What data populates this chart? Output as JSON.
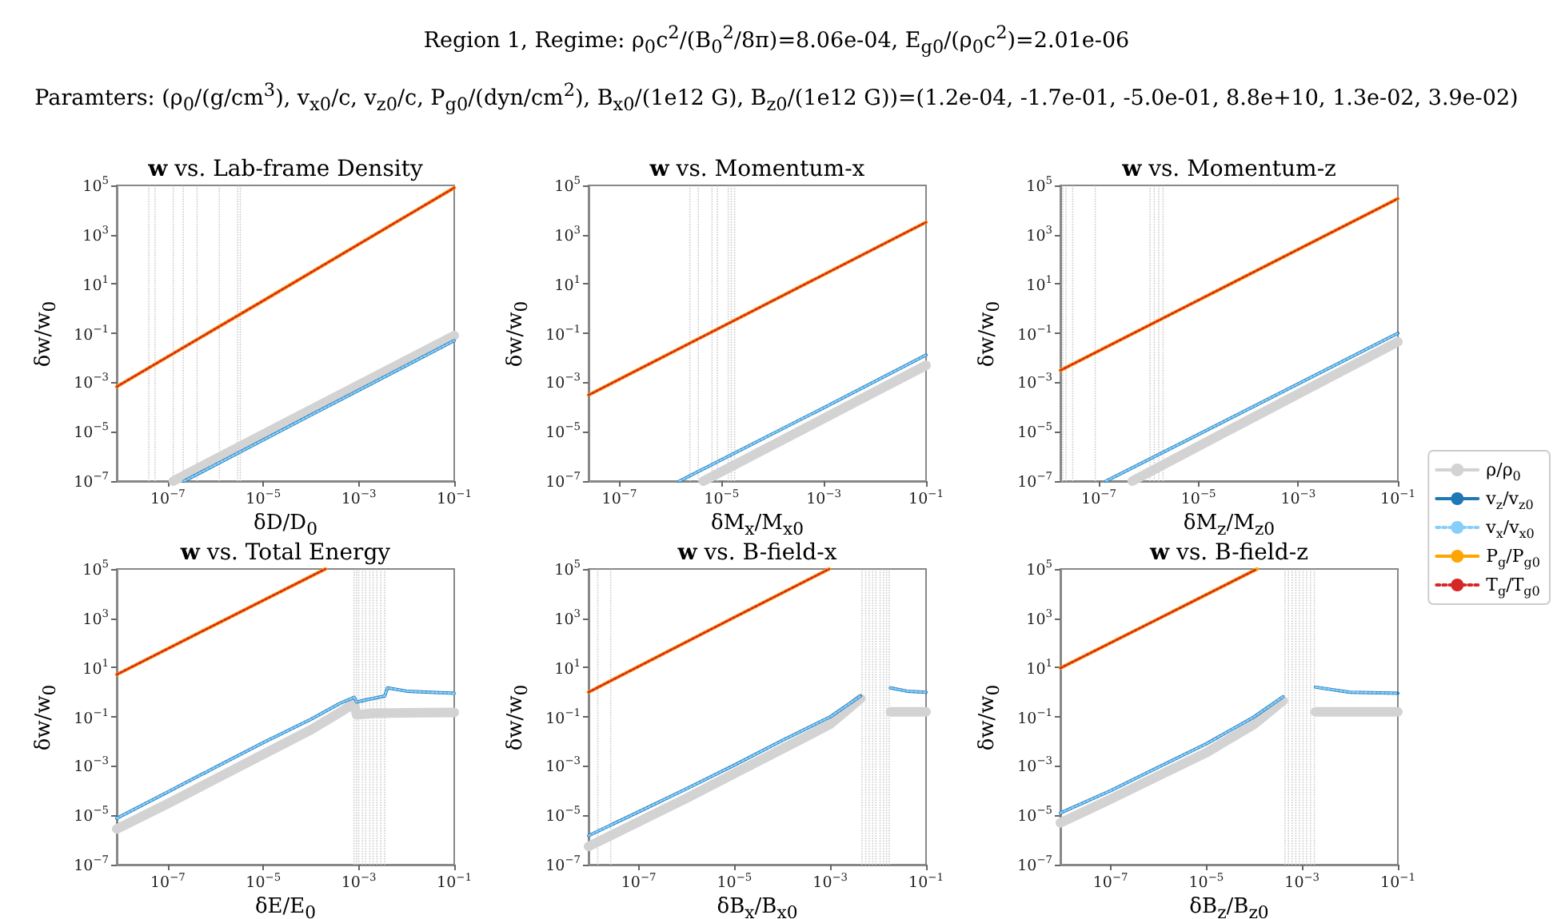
{
  "chart_data": [
    {
      "type": "line",
      "title": "w vs. Lab-frame Density",
      "xlabel": "δD/D$_{0}$",
      "ylabel": "δw/w$_{0}$",
      "log": "xy",
      "marker": "none",
      "annotations": [
        "Region 1, Regime: ρ$_{0}$c$^{2}$/(B$_{0}$$^{2}$/8π)=8.06e-04, E$_{g0}$/(ρ$_{0}$c$^{2}$)=2.01e-06",
        "Paramters: (ρ$_{0}$/(g/cm$^{3}$), v$_{x0}$/c, v$_{z0}$/c, P$_{g0}$/(dyn/cm$^{2}$), B$_{x0}$/(1e12 G), B$_{z0}$/(1e12 G))=(1.2e-04, -1.7e-01, -5.0e-01, 8.8e+10, 1.3e-02, 3.9e-02)"
      ],
      "xlim": [
        8.5e-09,
        0.1
      ],
      "ylim": [
        1e-07,
        100000.0
      ],
      "xticks": [
        {
          "value": 1e-07,
          "label": "10$^{−7}$"
        },
        {
          "value": 1e-05,
          "label": "10$^{−5}$"
        },
        {
          "value": 0.001,
          "label": "10$^{−3}$"
        },
        {
          "value": 0.1,
          "label": "10$^{−1}$"
        }
      ],
      "yticks": [
        {
          "value": 1e-07,
          "label": "10$^{−7}$"
        },
        {
          "value": 1e-05,
          "label": "10$^{−5}$"
        },
        {
          "value": 0.001,
          "label": "10$^{−3}$"
        },
        {
          "value": 0.1,
          "label": "10$^{−1}$"
        },
        {
          "value": 10,
          "label": "10$^{1}$"
        },
        {
          "value": 1000,
          "label": "10$^{3}$"
        },
        {
          "value": 100000,
          "label": "10$^{5}$"
        }
      ],
      "series": [
        {
          "color": "#d3d3d3",
          "line_style": "solid",
          "x": [
            1.3e-07,
            0.0001,
            0.1
          ],
          "values": [
            1e-07,
            8e-05,
            0.08
          ]
        },
        {
          "color": "#1f77b4",
          "line_style": "solid",
          "x": [
            2.2e-07,
            0.0001,
            0.1
          ],
          "values": [
            1e-07,
            4.8e-05,
            0.05
          ]
        },
        {
          "color": "#87cefa",
          "line_style": "dotted",
          "x": [
            2.2e-07,
            0.0001,
            0.1
          ],
          "values": [
            1e-07,
            4.8e-05,
            0.05
          ]
        },
        {
          "color": "#ffa500",
          "line_style": "solid",
          "x": [
            8.5e-09,
            1e-05,
            0.1
          ],
          "values": [
            0.00068,
            2.1,
            80000.0
          ]
        },
        {
          "color": "#d62728",
          "line_style": "dotted",
          "x": [
            8.5e-09,
            1e-05,
            0.1
          ],
          "values": [
            0.00068,
            2.1,
            80000.0
          ]
        }
      ],
      "ref_lines": [
        {
          "axis": "x",
          "value": 4e-08,
          "color": "#cccccc",
          "line_style": "dotted"
        },
        {
          "axis": "x",
          "value": 5.4e-08,
          "color": "#cccccc",
          "line_style": "dotted"
        },
        {
          "axis": "x",
          "value": 1.3e-07,
          "color": "#cccccc",
          "line_style": "dotted"
        },
        {
          "axis": "x",
          "value": 2.1e-07,
          "color": "#cccccc",
          "line_style": "dotted"
        },
        {
          "axis": "x",
          "value": 4.1e-07,
          "color": "#cccccc",
          "line_style": "dotted"
        },
        {
          "axis": "x",
          "value": 1.2e-06,
          "color": "#cccccc",
          "line_style": "dotted"
        },
        {
          "axis": "x",
          "value": 2.9e-06,
          "color": "#cccccc",
          "line_style": "dotted"
        },
        {
          "axis": "x",
          "value": 3.3e-06,
          "color": "#cccccc",
          "line_style": "dotted"
        }
      ]
    },
    {
      "type": "line",
      "title": "w vs. Momentum-x",
      "xlabel": "δM$_{x}$/M$_{x0}$",
      "ylabel": "δw/w$_{0}$",
      "log": "xy",
      "marker": "none",
      "xlim": [
        2.5e-08,
        0.1
      ],
      "ylim": [
        1e-07,
        100000.0
      ],
      "xticks": [
        {
          "value": 1e-07,
          "label": "10$^{−7}$"
        },
        {
          "value": 1e-05,
          "label": "10$^{−5}$"
        },
        {
          "value": 0.001,
          "label": "10$^{−3}$"
        },
        {
          "value": 0.1,
          "label": "10$^{−1}$"
        }
      ],
      "yticks": [
        {
          "value": 1e-07,
          "label": "10$^{−7}$"
        },
        {
          "value": 1e-05,
          "label": "10$^{−5}$"
        },
        {
          "value": 0.001,
          "label": "10$^{−3}$"
        },
        {
          "value": 0.1,
          "label": "10$^{−1}$"
        },
        {
          "value": 10,
          "label": "10$^{1}$"
        },
        {
          "value": 1000,
          "label": "10$^{3}$"
        },
        {
          "value": 100000,
          "label": "10$^{5}$"
        }
      ],
      "series": [
        {
          "color": "#d3d3d3",
          "line_style": "solid",
          "x": [
            4.4e-06,
            0.001,
            0.1
          ],
          "values": [
            1e-07,
            3.5e-05,
            0.005
          ]
        },
        {
          "color": "#1f77b4",
          "line_style": "solid",
          "x": [
            1.5e-06,
            0.001,
            0.1
          ],
          "values": [
            1e-07,
            9.5e-05,
            0.013
          ]
        },
        {
          "color": "#87cefa",
          "line_style": "dotted",
          "x": [
            1.5e-06,
            0.001,
            0.1
          ],
          "values": [
            1e-07,
            9.5e-05,
            0.013
          ]
        },
        {
          "color": "#ffa500",
          "line_style": "solid",
          "x": [
            2.5e-08,
            1e-05,
            0.1
          ],
          "values": [
            0.00031,
            0.18,
            3200.0
          ]
        },
        {
          "color": "#d62728",
          "line_style": "dotted",
          "x": [
            2.5e-08,
            1e-05,
            0.1
          ],
          "values": [
            0.00031,
            0.18,
            3200.0
          ]
        }
      ],
      "ref_lines": [
        {
          "axis": "x",
          "value": 2.4e-06,
          "color": "#cccccc",
          "line_style": "dotted"
        },
        {
          "axis": "x",
          "value": 3.5e-06,
          "color": "#cccccc",
          "line_style": "dotted"
        },
        {
          "axis": "x",
          "value": 6.5e-06,
          "color": "#cccccc",
          "line_style": "dotted"
        },
        {
          "axis": "x",
          "value": 8.3e-06,
          "color": "#cccccc",
          "line_style": "dotted"
        },
        {
          "axis": "x",
          "value": 1.35e-05,
          "color": "#cccccc",
          "line_style": "dotted"
        },
        {
          "axis": "x",
          "value": 1.55e-05,
          "color": "#cccccc",
          "line_style": "dotted"
        },
        {
          "axis": "x",
          "value": 1.8e-05,
          "color": "#cccccc",
          "line_style": "dotted"
        }
      ]
    },
    {
      "type": "line",
      "title": "w vs. Momentum-z",
      "xlabel": "δM$_{z}$/M$_{z0}$",
      "ylabel": "δw/w$_{0}$",
      "log": "xy",
      "marker": "none",
      "legend": "right",
      "xlim": [
        1.7e-08,
        0.1
      ],
      "ylim": [
        1e-07,
        100000.0
      ],
      "xticks": [
        {
          "value": 1e-07,
          "label": "10$^{−7}$"
        },
        {
          "value": 1e-05,
          "label": "10$^{−5}$"
        },
        {
          "value": 0.001,
          "label": "10$^{−3}$"
        },
        {
          "value": 0.1,
          "label": "10$^{−1}$"
        }
      ],
      "yticks": [
        {
          "value": 1e-07,
          "label": "10$^{−7}$"
        },
        {
          "value": 1e-05,
          "label": "10$^{−5}$"
        },
        {
          "value": 0.001,
          "label": "10$^{−3}$"
        },
        {
          "value": 0.1,
          "label": "10$^{−1}$"
        },
        {
          "value": 10,
          "label": "10$^{1}$"
        },
        {
          "value": 1000,
          "label": "10$^{3}$"
        },
        {
          "value": 100000,
          "label": "10$^{5}$"
        }
      ],
      "series": [
        {
          "name": "ρ/ρ$_{0}$",
          "color": "#d3d3d3",
          "line_style": "solid",
          "x": [
            4.7e-07,
            0.0001,
            0.1
          ],
          "values": [
            1e-07,
            3e-05,
            0.045
          ]
        },
        {
          "name": "v$_{z}$/v$_{z0}$",
          "color": "#1f77b4",
          "line_style": "solid",
          "x": [
            1.4e-07,
            0.0001,
            0.1
          ],
          "values": [
            1e-07,
            8.3e-05,
            0.1
          ]
        },
        {
          "name": "v$_{x}$/v$_{x0}$",
          "color": "#87cefa",
          "line_style": "dotted",
          "x": [
            1.4e-07,
            0.0001,
            0.1
          ],
          "values": [
            1e-07,
            8.3e-05,
            0.1
          ]
        },
        {
          "name": "P$_{g}$/P$_{g0}$",
          "color": "#ffa500",
          "line_style": "solid",
          "x": [
            1.7e-08,
            1e-05,
            0.1
          ],
          "values": [
            0.0031,
            2.2,
            29000.0
          ]
        },
        {
          "name": "T$_{g}$/T$_{g0}$",
          "color": "#d62728",
          "line_style": "dotted",
          "x": [
            1.7e-08,
            1e-05,
            0.1
          ],
          "values": [
            0.0031,
            2.2,
            29000.0
          ]
        }
      ],
      "ref_lines": [
        {
          "axis": "x",
          "value": 1.9e-08,
          "color": "#cccccc",
          "line_style": "dotted"
        },
        {
          "axis": "x",
          "value": 2.2e-08,
          "color": "#cccccc",
          "line_style": "dotted"
        },
        {
          "axis": "x",
          "value": 3e-08,
          "color": "#cccccc",
          "line_style": "dotted"
        },
        {
          "axis": "x",
          "value": 8.5e-08,
          "color": "#cccccc",
          "line_style": "dotted"
        },
        {
          "axis": "x",
          "value": 1.07e-06,
          "color": "#cccccc",
          "line_style": "dotted"
        },
        {
          "axis": "x",
          "value": 1.3e-06,
          "color": "#cccccc",
          "line_style": "dotted"
        },
        {
          "axis": "x",
          "value": 1.6e-06,
          "color": "#cccccc",
          "line_style": "dotted"
        },
        {
          "axis": "x",
          "value": 1.95e-06,
          "color": "#cccccc",
          "line_style": "dotted"
        }
      ]
    },
    {
      "type": "line",
      "title": "w vs. Total Energy",
      "xlabel": "δE/E$_{0}$",
      "ylabel": "δw/w$_{0}$",
      "log": "xy",
      "marker": "none",
      "xlim": [
        8.5e-09,
        0.1
      ],
      "ylim": [
        1e-07,
        100000.0
      ],
      "xticks": [
        {
          "value": 1e-07,
          "label": "10$^{−7}$"
        },
        {
          "value": 1e-05,
          "label": "10$^{−5}$"
        },
        {
          "value": 0.001,
          "label": "10$^{−3}$"
        },
        {
          "value": 0.1,
          "label": "10$^{−1}$"
        }
      ],
      "yticks": [
        {
          "value": 1e-07,
          "label": "10$^{−7}$"
        },
        {
          "value": 1e-05,
          "label": "10$^{−5}$"
        },
        {
          "value": 0.001,
          "label": "10$^{−3}$"
        },
        {
          "value": 0.1,
          "label": "10$^{−1}$"
        },
        {
          "value": 10,
          "label": "10$^{1}$"
        },
        {
          "value": 1000,
          "label": "10$^{3}$"
        },
        {
          "value": 100000,
          "label": "10$^{5}$"
        }
      ],
      "series": [
        {
          "color": "#d3d3d3",
          "line_style": "solid",
          "x": [
            8.5e-09,
            1e-07,
            1e-06,
            1e-05,
            0.0001,
            0.0004,
            0.0008,
            0.0009,
            0.002,
            0.1
          ],
          "values": [
            2.8e-06,
            3e-05,
            0.0003,
            0.003,
            0.03,
            0.15,
            0.35,
            0.12,
            0.14,
            0.15
          ]
        },
        {
          "color": "#1f77b4",
          "line_style": "solid",
          "x": [
            8.5e-09,
            1e-07,
            1e-06,
            1e-05,
            0.0001,
            0.0004,
            0.0008,
            0.0009,
            0.0015,
            0.0035,
            0.004,
            0.01,
            0.1
          ],
          "values": [
            7.6e-06,
            9e-05,
            0.0009,
            0.009,
            0.08,
            0.35,
            0.62,
            0.4,
            0.5,
            0.7,
            1.5,
            1.1,
            0.9
          ]
        },
        {
          "color": "#87cefa",
          "line_style": "dotted",
          "x": [
            8.5e-09,
            1e-07,
            1e-06,
            1e-05,
            0.0001,
            0.0004,
            0.0008,
            0.0009,
            0.0015,
            0.0035,
            0.004,
            0.01,
            0.1
          ],
          "values": [
            7.6e-06,
            9e-05,
            0.0009,
            0.009,
            0.08,
            0.35,
            0.62,
            0.4,
            0.5,
            0.7,
            1.5,
            1.1,
            0.9
          ]
        },
        {
          "color": "#ffa500",
          "line_style": "solid",
          "x": [
            8.5e-09,
            1e-06,
            0.0002
          ],
          "values": [
            5.2,
            560,
            100000.0
          ]
        },
        {
          "color": "#d62728",
          "line_style": "dotted",
          "x": [
            8.5e-09,
            1e-06,
            0.0002
          ],
          "values": [
            5.2,
            560,
            100000.0
          ]
        }
      ],
      "ref_lines": [
        {
          "axis": "x",
          "value": 0.0008,
          "color": "#cccccc",
          "line_style": "dotted"
        },
        {
          "axis": "x",
          "value": 0.0009,
          "color": "#cccccc",
          "line_style": "dotted"
        },
        {
          "axis": "x",
          "value": 0.001,
          "color": "#cccccc",
          "line_style": "dotted"
        },
        {
          "axis": "x",
          "value": 0.0012,
          "color": "#cccccc",
          "line_style": "dotted"
        },
        {
          "axis": "x",
          "value": 0.0014,
          "color": "#cccccc",
          "line_style": "dotted"
        },
        {
          "axis": "x",
          "value": 0.0017,
          "color": "#cccccc",
          "line_style": "dotted"
        },
        {
          "axis": "x",
          "value": 0.002,
          "color": "#cccccc",
          "line_style": "dotted"
        },
        {
          "axis": "x",
          "value": 0.0024,
          "color": "#cccccc",
          "line_style": "dotted"
        },
        {
          "axis": "x",
          "value": 0.0029,
          "color": "#cccccc",
          "line_style": "dotted"
        },
        {
          "axis": "x",
          "value": 0.0035,
          "color": "#cccccc",
          "line_style": "dotted"
        }
      ]
    },
    {
      "type": "line",
      "title": "w vs. B-field-x",
      "xlabel": "δB$_{x}$/B$_{x0}$",
      "ylabel": "δw/w$_{0}$",
      "log": "xy",
      "marker": "none",
      "xlim": [
        9e-09,
        0.1
      ],
      "ylim": [
        1e-07,
        100000.0
      ],
      "xticks": [
        {
          "value": 1e-07,
          "label": "10$^{−7}$"
        },
        {
          "value": 1e-05,
          "label": "10$^{−5}$"
        },
        {
          "value": 0.001,
          "label": "10$^{−3}$"
        },
        {
          "value": 0.1,
          "label": "10$^{−1}$"
        }
      ],
      "yticks": [
        {
          "value": 1e-07,
          "label": "10$^{−7}$"
        },
        {
          "value": 1e-05,
          "label": "10$^{−5}$"
        },
        {
          "value": 0.001,
          "label": "10$^{−3}$"
        },
        {
          "value": 0.1,
          "label": "10$^{−1}$"
        },
        {
          "value": 10,
          "label": "10$^{1}$"
        },
        {
          "value": 1000,
          "label": "10$^{3}$"
        },
        {
          "value": 100000,
          "label": "10$^{5}$"
        }
      ],
      "series": [
        {
          "color": "#d3d3d3",
          "line_style": "solid",
          "x": [
            9e-09,
            1e-07,
            1e-06,
            1e-05,
            0.0001,
            0.001,
            0.0043,
            0.01,
            0.018,
            0.1
          ],
          "values": [
            5.5e-07,
            5.5e-06,
            5e-05,
            0.0005,
            0.005,
            0.05,
            0.55,
            null,
            0.16,
            0.16
          ]
        },
        {
          "color": "#1f77b4",
          "line_style": "solid",
          "x": [
            9e-09,
            1e-07,
            1e-06,
            1e-05,
            0.0001,
            0.001,
            0.0043,
            0.01,
            0.018,
            0.04,
            0.1
          ],
          "values": [
            1.5e-06,
            1.4e-05,
            0.00012,
            0.0011,
            0.011,
            0.1,
            0.7,
            null,
            1.5,
            1.1,
            1.0
          ]
        },
        {
          "color": "#87cefa",
          "line_style": "dotted",
          "x": [
            9e-09,
            1e-07,
            1e-06,
            1e-05,
            0.0001,
            0.001,
            0.0043,
            0.01,
            0.018,
            0.04,
            0.1
          ],
          "values": [
            1.5e-06,
            1.4e-05,
            0.00012,
            0.0011,
            0.011,
            0.1,
            0.7,
            null,
            1.5,
            1.1,
            1.0
          ]
        },
        {
          "color": "#ffa500",
          "line_style": "solid",
          "x": [
            9e-09,
            1e-05,
            0.00095
          ],
          "values": [
            1.0,
            1100.0,
            100000.0
          ]
        },
        {
          "color": "#d62728",
          "line_style": "dotted",
          "x": [
            9e-09,
            1e-05,
            0.00095
          ],
          "values": [
            1.0,
            1100.0,
            100000.0
          ]
        }
      ],
      "ref_lines": [
        {
          "axis": "x",
          "value": 1.4e-08,
          "color": "#cccccc",
          "line_style": "dotted"
        },
        {
          "axis": "x",
          "value": 2.6e-08,
          "color": "#cccccc",
          "line_style": "dotted"
        },
        {
          "axis": "x",
          "value": 0.0046,
          "color": "#cccccc",
          "line_style": "dotted"
        },
        {
          "axis": "x",
          "value": 0.0055,
          "color": "#cccccc",
          "line_style": "dotted"
        },
        {
          "axis": "x",
          "value": 0.0065,
          "color": "#cccccc",
          "line_style": "dotted"
        },
        {
          "axis": "x",
          "value": 0.0077,
          "color": "#cccccc",
          "line_style": "dotted"
        },
        {
          "axis": "x",
          "value": 0.009,
          "color": "#cccccc",
          "line_style": "dotted"
        },
        {
          "axis": "x",
          "value": 0.011,
          "color": "#cccccc",
          "line_style": "dotted"
        },
        {
          "axis": "x",
          "value": 0.013,
          "color": "#cccccc",
          "line_style": "dotted"
        },
        {
          "axis": "x",
          "value": 0.015,
          "color": "#cccccc",
          "line_style": "dotted"
        },
        {
          "axis": "x",
          "value": 0.017,
          "color": "#cccccc",
          "line_style": "dotted"
        }
      ]
    },
    {
      "type": "line",
      "title": "w vs. B-field-z",
      "xlabel": "δB$_{z}$/B$_{z0}$",
      "ylabel": "δw/w$_{0}$",
      "log": "xy",
      "marker": "none",
      "xlim": [
        9e-09,
        0.1
      ],
      "ylim": [
        1e-07,
        100000.0
      ],
      "xticks": [
        {
          "value": 1e-07,
          "label": "10$^{−7}$"
        },
        {
          "value": 1e-05,
          "label": "10$^{−5}$"
        },
        {
          "value": 0.001,
          "label": "10$^{−3}$"
        },
        {
          "value": 0.1,
          "label": "10$^{−1}$"
        }
      ],
      "yticks": [
        {
          "value": 1e-07,
          "label": "10$^{−7}$"
        },
        {
          "value": 1e-05,
          "label": "10$^{−5}$"
        },
        {
          "value": 0.001,
          "label": "10$^{−3}$"
        },
        {
          "value": 0.1,
          "label": "10$^{−1}$"
        },
        {
          "value": 10,
          "label": "10$^{1}$"
        },
        {
          "value": 1000,
          "label": "10$^{3}$"
        },
        {
          "value": 100000,
          "label": "10$^{5}$"
        }
      ],
      "series": [
        {
          "color": "#d3d3d3",
          "line_style": "solid",
          "x": [
            9e-09,
            1e-07,
            1e-06,
            1e-05,
            0.0001,
            0.0004,
            0.001,
            0.0019,
            0.1
          ],
          "values": [
            5e-06,
            4.5e-05,
            0.0004,
            0.0035,
            0.05,
            0.45,
            null,
            0.16,
            0.16
          ]
        },
        {
          "color": "#1f77b4",
          "line_style": "solid",
          "x": [
            9e-09,
            1e-07,
            1e-06,
            1e-05,
            0.0001,
            0.0004,
            0.001,
            0.0019,
            0.01,
            0.1
          ],
          "values": [
            1.25e-05,
            0.0001,
            0.0009,
            0.008,
            0.1,
            0.65,
            null,
            1.6,
            1.0,
            0.9
          ]
        },
        {
          "color": "#87cefa",
          "line_style": "dotted",
          "x": [
            9e-09,
            1e-07,
            1e-06,
            1e-05,
            0.0001,
            0.0004,
            0.001,
            0.0019,
            0.01,
            0.1
          ],
          "values": [
            1.25e-05,
            0.0001,
            0.0009,
            0.008,
            0.1,
            0.65,
            null,
            1.6,
            1.0,
            0.9
          ]
        },
        {
          "color": "#ffa500",
          "line_style": "solid",
          "x": [
            9e-09,
            1e-06,
            0.000115
          ],
          "values": [
            9.5,
            950,
            100000.0
          ]
        },
        {
          "color": "#d62728",
          "line_style": "dotted",
          "x": [
            9e-09,
            1e-06,
            0.000115
          ],
          "values": [
            9.5,
            950,
            100000.0
          ]
        }
      ],
      "ref_lines": [
        {
          "axis": "x",
          "value": 0.00044,
          "color": "#cccccc",
          "line_style": "dotted"
        },
        {
          "axis": "x",
          "value": 0.00052,
          "color": "#cccccc",
          "line_style": "dotted"
        },
        {
          "axis": "x",
          "value": 0.00062,
          "color": "#cccccc",
          "line_style": "dotted"
        },
        {
          "axis": "x",
          "value": 0.00074,
          "color": "#cccccc",
          "line_style": "dotted"
        },
        {
          "axis": "x",
          "value": 0.00088,
          "color": "#cccccc",
          "line_style": "dotted"
        },
        {
          "axis": "x",
          "value": 0.00105,
          "color": "#cccccc",
          "line_style": "dotted"
        },
        {
          "axis": "x",
          "value": 0.00125,
          "color": "#cccccc",
          "line_style": "dotted"
        },
        {
          "axis": "x",
          "value": 0.0015,
          "color": "#cccccc",
          "line_style": "dotted"
        },
        {
          "axis": "x",
          "value": 0.0018,
          "color": "#cccccc",
          "line_style": "dotted"
        }
      ]
    }
  ]
}
